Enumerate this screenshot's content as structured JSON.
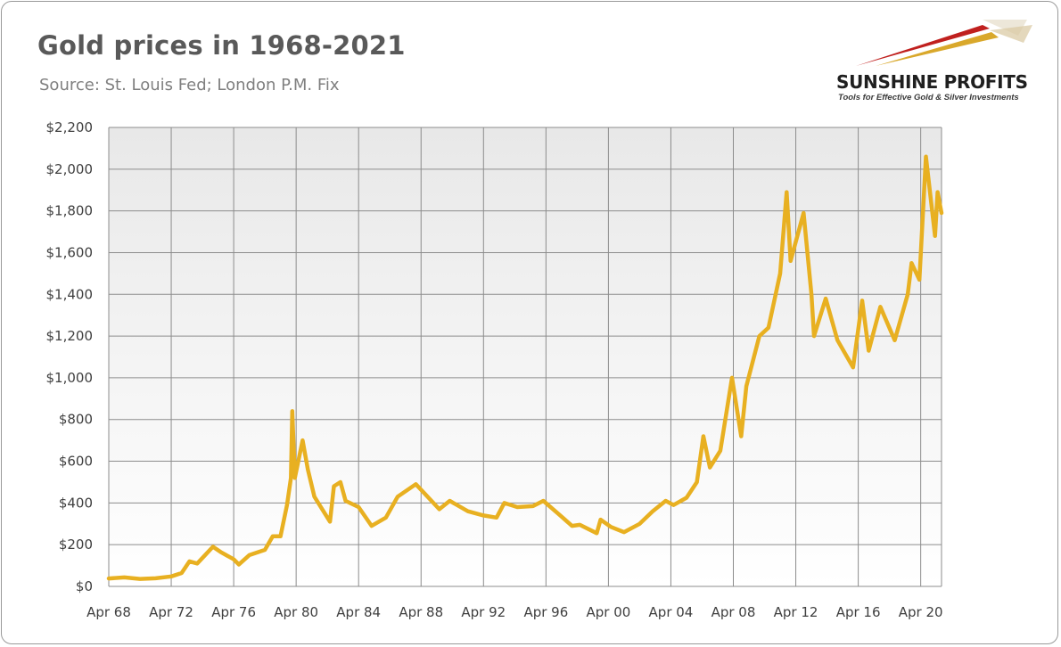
{
  "header": {
    "title": "Gold prices in 1968-2021",
    "subtitle": "Source: St. Louis Fed; London P.M. Fix"
  },
  "logo": {
    "name": "SUNSHINE PROFITS",
    "tagline": "Tools for Effective Gold & Silver Investments",
    "colors": {
      "red": "#c0201e",
      "gold": "#d9a82b",
      "gray": "#9a9a9a"
    }
  },
  "colors": {
    "line": "#e8b021",
    "grid": "#8c8c8c",
    "text": "#404040"
  },
  "chart_data": {
    "type": "line",
    "title": "Gold prices in 1968-2021",
    "subtitle": "Source: St. Louis Fed; London P.M. Fix",
    "xlabel": "",
    "ylabel": "",
    "x_range": [
      "1968-04",
      "2021-08"
    ],
    "ylim": [
      0,
      2200
    ],
    "grid": true,
    "legend": "none",
    "x_ticks": [
      "Apr 68",
      "Apr 72",
      "Apr 76",
      "Apr 80",
      "Apr 84",
      "Apr 88",
      "Apr 92",
      "Apr 96",
      "Apr 00",
      "Apr 04",
      "Apr 08",
      "Apr 12",
      "Apr 16",
      "Apr 20"
    ],
    "y_ticks": [
      "$0",
      "$200",
      "$400",
      "$600",
      "$800",
      "$1,000",
      "$1,200",
      "$1,400",
      "$1,600",
      "$1,800",
      "$2,000",
      "$2,200"
    ],
    "y_tick_values": [
      0,
      200,
      400,
      600,
      800,
      1000,
      1200,
      1400,
      1600,
      1800,
      2000,
      2200
    ],
    "series": [
      {
        "values": [
          [
            "1968-04",
            38
          ],
          [
            "1969-04",
            43
          ],
          [
            "1970-04",
            36
          ],
          [
            "1971-04",
            39
          ],
          [
            "1972-04",
            48
          ],
          [
            "1972-12",
            64
          ],
          [
            "1973-06",
            120
          ],
          [
            "1973-12",
            110
          ],
          [
            "1974-06",
            150
          ],
          [
            "1974-12",
            190
          ],
          [
            "1975-06",
            165
          ],
          [
            "1976-04",
            130
          ],
          [
            "1976-08",
            105
          ],
          [
            "1977-04",
            150
          ],
          [
            "1978-04",
            175
          ],
          [
            "1978-10",
            240
          ],
          [
            "1979-04",
            240
          ],
          [
            "1979-09",
            390
          ],
          [
            "1979-12",
            520
          ],
          [
            "1980-01",
            840
          ],
          [
            "1980-03",
            520
          ],
          [
            "1980-09",
            700
          ],
          [
            "1981-01",
            560
          ],
          [
            "1981-06",
            430
          ],
          [
            "1982-06",
            310
          ],
          [
            "1982-09",
            480
          ],
          [
            "1983-02",
            500
          ],
          [
            "1983-06",
            410
          ],
          [
            "1984-04",
            380
          ],
          [
            "1985-02",
            290
          ],
          [
            "1986-01",
            330
          ],
          [
            "1986-10",
            430
          ],
          [
            "1987-12",
            490
          ],
          [
            "1988-06",
            450
          ],
          [
            "1989-06",
            370
          ],
          [
            "1990-02",
            410
          ],
          [
            "1991-04",
            360
          ],
          [
            "1992-04",
            340
          ],
          [
            "1993-02",
            330
          ],
          [
            "1993-08",
            400
          ],
          [
            "1994-06",
            380
          ],
          [
            "1995-06",
            385
          ],
          [
            "1996-02",
            410
          ],
          [
            "1997-03",
            340
          ],
          [
            "1997-12",
            290
          ],
          [
            "1998-06",
            295
          ],
          [
            "1999-07",
            255
          ],
          [
            "1999-10",
            320
          ],
          [
            "2000-06",
            285
          ],
          [
            "2001-04",
            260
          ],
          [
            "2002-04",
            300
          ],
          [
            "2003-02",
            360
          ],
          [
            "2003-12",
            410
          ],
          [
            "2004-06",
            390
          ],
          [
            "2005-04",
            425
          ],
          [
            "2005-12",
            500
          ],
          [
            "2006-05",
            720
          ],
          [
            "2006-10",
            570
          ],
          [
            "2007-06",
            650
          ],
          [
            "2008-03",
            1000
          ],
          [
            "2008-10",
            720
          ],
          [
            "2009-02",
            960
          ],
          [
            "2009-12",
            1200
          ],
          [
            "2010-07",
            1240
          ],
          [
            "2011-04",
            1500
          ],
          [
            "2011-09",
            1890
          ],
          [
            "2011-12",
            1560
          ],
          [
            "2012-10",
            1790
          ],
          [
            "2013-04",
            1400
          ],
          [
            "2013-06",
            1200
          ],
          [
            "2014-03",
            1380
          ],
          [
            "2014-12",
            1180
          ],
          [
            "2015-12",
            1050
          ],
          [
            "2016-07",
            1370
          ],
          [
            "2016-12",
            1130
          ],
          [
            "2017-09",
            1340
          ],
          [
            "2018-08",
            1180
          ],
          [
            "2019-06",
            1400
          ],
          [
            "2019-09",
            1550
          ],
          [
            "2020-03",
            1470
          ],
          [
            "2020-08",
            2060
          ],
          [
            "2021-03",
            1680
          ],
          [
            "2021-05",
            1890
          ],
          [
            "2021-08",
            1790
          ]
        ]
      }
    ]
  }
}
